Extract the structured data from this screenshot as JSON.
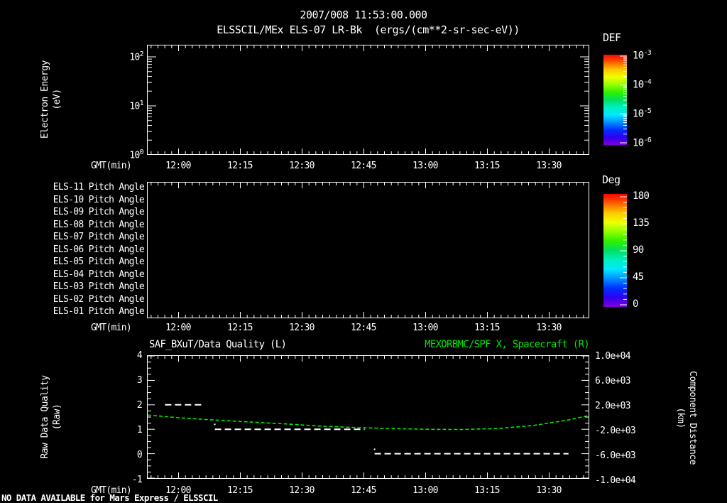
{
  "header": {
    "timestamp": "2007/008 11:53:00.000",
    "subtitle": "ELSSCIL/MEx ELS-07 LR-Bk  (ergs/(cm**2-sr-sec-eV))"
  },
  "time_ticks": [
    "12:00",
    "12:15",
    "12:30",
    "12:45",
    "13:00",
    "13:15",
    "13:30"
  ],
  "panel1": {
    "ylabel_line1": "Electron Energy",
    "ylabel_line2": "(eV)",
    "yticks": [
      {
        "base": "10",
        "exp": "2"
      },
      {
        "base": "10",
        "exp": "1"
      },
      {
        "base": "10",
        "exp": "0"
      }
    ],
    "xlabel": "GMT(min)"
  },
  "colorbar_def": {
    "title": "DEF",
    "ticks": [
      {
        "base": "10",
        "exp": "-3"
      },
      {
        "base": "10",
        "exp": "-4"
      },
      {
        "base": "10",
        "exp": "-5"
      },
      {
        "base": "10",
        "exp": "-6"
      }
    ]
  },
  "panel2": {
    "ylabels": [
      "ELS-11 Pitch Angle",
      "ELS-10 Pitch Angle",
      "ELS-09 Pitch Angle",
      "ELS-08 Pitch Angle",
      "ELS-07 Pitch Angle",
      "ELS-06 Pitch Angle",
      "ELS-05 Pitch Angle",
      "ELS-04 Pitch Angle",
      "ELS-03 Pitch Angle",
      "ELS-02 Pitch Angle",
      "ELS-01 Pitch Angle"
    ],
    "xlabel": "GMT(min)"
  },
  "colorbar_deg": {
    "title": "Deg",
    "ticks": [
      "180",
      "135",
      "90",
      "45",
      "0"
    ]
  },
  "panel3": {
    "title_left": "SAF_BXuT/Data Quality (L)",
    "title_right": "MEXORBMC/SPF X, Spacecraft (R)",
    "ylabel_left_line1": "Raw Data Quality",
    "ylabel_left_line2": "(Raw)",
    "yticks_left": [
      "4",
      "3",
      "2",
      "1",
      "0",
      "-1"
    ],
    "yticks_right": [
      "1.0e+04",
      "6.0e+03",
      "2.0e+03",
      "-2.0e+03",
      "-6.0e+03",
      "-1.0e+04"
    ],
    "ylabel_right_line1": "Component Distance",
    "ylabel_right_line2": "(km)",
    "xlabel": "GMT(min)"
  },
  "footer": {
    "note": "NO DATA AVAILABLE for Mars Express / ELSSCIL"
  },
  "colors": {
    "background": "#000000",
    "foreground": "#ffffff",
    "accent_green": "#00e800",
    "rainbow": [
      "#ff0000",
      "#ff6000",
      "#ffc800",
      "#f0ff00",
      "#90ff00",
      "#30f000",
      "#00e060",
      "#00f0c0",
      "#00e8ff",
      "#0090ff",
      "#0030ff",
      "#3000f0",
      "#8000d8"
    ]
  },
  "chart_data": [
    {
      "type": "heatmap",
      "title": "ELSSCIL/MEx ELS-07 LR-Bk  (ergs/(cm**2-sr-sec-eV))",
      "ylabel": "Electron Energy (eV)",
      "y_scale": "log",
      "y_tick_values_eV": [
        1,
        10,
        100
      ],
      "xlabel": "GMT(min)",
      "x_tick_labels": [
        "12:00",
        "12:15",
        "12:30",
        "12:45",
        "13:00",
        "13:15",
        "13:30"
      ],
      "colorbar": {
        "title": "DEF",
        "scale": "log",
        "tick_values": [
          0.001,
          0.0001,
          1e-05,
          1e-06
        ]
      },
      "values": [],
      "note": "panel rendered blank - no spectrogram data plotted"
    },
    {
      "type": "heatmap",
      "ylabel_rows": [
        "ELS-11 Pitch Angle",
        "ELS-10 Pitch Angle",
        "ELS-09 Pitch Angle",
        "ELS-08 Pitch Angle",
        "ELS-07 Pitch Angle",
        "ELS-06 Pitch Angle",
        "ELS-05 Pitch Angle",
        "ELS-04 Pitch Angle",
        "ELS-03 Pitch Angle",
        "ELS-02 Pitch Angle",
        "ELS-01 Pitch Angle"
      ],
      "xlabel": "GMT(min)",
      "x_tick_labels": [
        "12:00",
        "12:15",
        "12:30",
        "12:45",
        "13:00",
        "13:15",
        "13:30"
      ],
      "colorbar": {
        "title": "Deg",
        "tick_values": [
          180,
          135,
          90,
          45,
          0
        ]
      },
      "values": [],
      "note": "panel rendered blank - no pitch-angle data plotted"
    },
    {
      "type": "line",
      "title_left": "SAF_BXuT/Data Quality (L)",
      "title_right": "MEXORBMC/SPF X, Spacecraft (R)",
      "x_axis": {
        "label": "GMT(min)",
        "tick_labels": [
          "12:00",
          "12:15",
          "12:30",
          "12:45",
          "13:00",
          "13:15",
          "13:30"
        ],
        "tick_minutes_from_1200": [
          0,
          15,
          30,
          45,
          60,
          75,
          90
        ],
        "range_minutes_from_1200": [
          -7.5,
          99.8
        ]
      },
      "y_left": {
        "label": "Raw Data Quality (Raw)",
        "range": [
          -1,
          4
        ],
        "ticks": [
          4,
          3,
          2,
          1,
          0,
          -1
        ]
      },
      "y_right": {
        "label": "Component Distance (km)",
        "range": [
          -10000,
          10000
        ],
        "ticks": [
          10000,
          6000,
          2000,
          -2000,
          -6000,
          -10000
        ]
      },
      "grid": false,
      "series": [
        {
          "name": "SAF_BXuT/Data Quality (L)",
          "axis": "left",
          "color": "#ffffff",
          "style": "dashed",
          "segments": [
            {
              "value": 2,
              "t_start": -3.3,
              "t_end": 5.5
            },
            {
              "value": 1,
              "t_start": 8.8,
              "t_end": 45.2
            },
            {
              "value": 0,
              "t_start": 47.6,
              "t_end": 94.7
            }
          ],
          "isolated_points": [
            {
              "t": 8.8,
              "value": 1.2
            },
            {
              "t": 47.6,
              "value": 0.18
            }
          ]
        },
        {
          "name": "MEXORBMC/SPF X, Spacecraft (R)",
          "axis": "right",
          "color": "#00e800",
          "style": "dashed",
          "points": [
            [
              -7.5,
              320
            ],
            [
              0,
              -120
            ],
            [
              8.4,
              -480
            ],
            [
              17,
              -800
            ],
            [
              25.7,
              -1120
            ],
            [
              34.3,
              -1480
            ],
            [
              42.9,
              -1720
            ],
            [
              51.6,
              -1880
            ],
            [
              60.2,
              -2000
            ],
            [
              68.8,
              -2040
            ],
            [
              77.4,
              -1880
            ],
            [
              86,
              -1400
            ],
            [
              94.7,
              -480
            ],
            [
              99.8,
              280
            ]
          ]
        }
      ]
    }
  ]
}
